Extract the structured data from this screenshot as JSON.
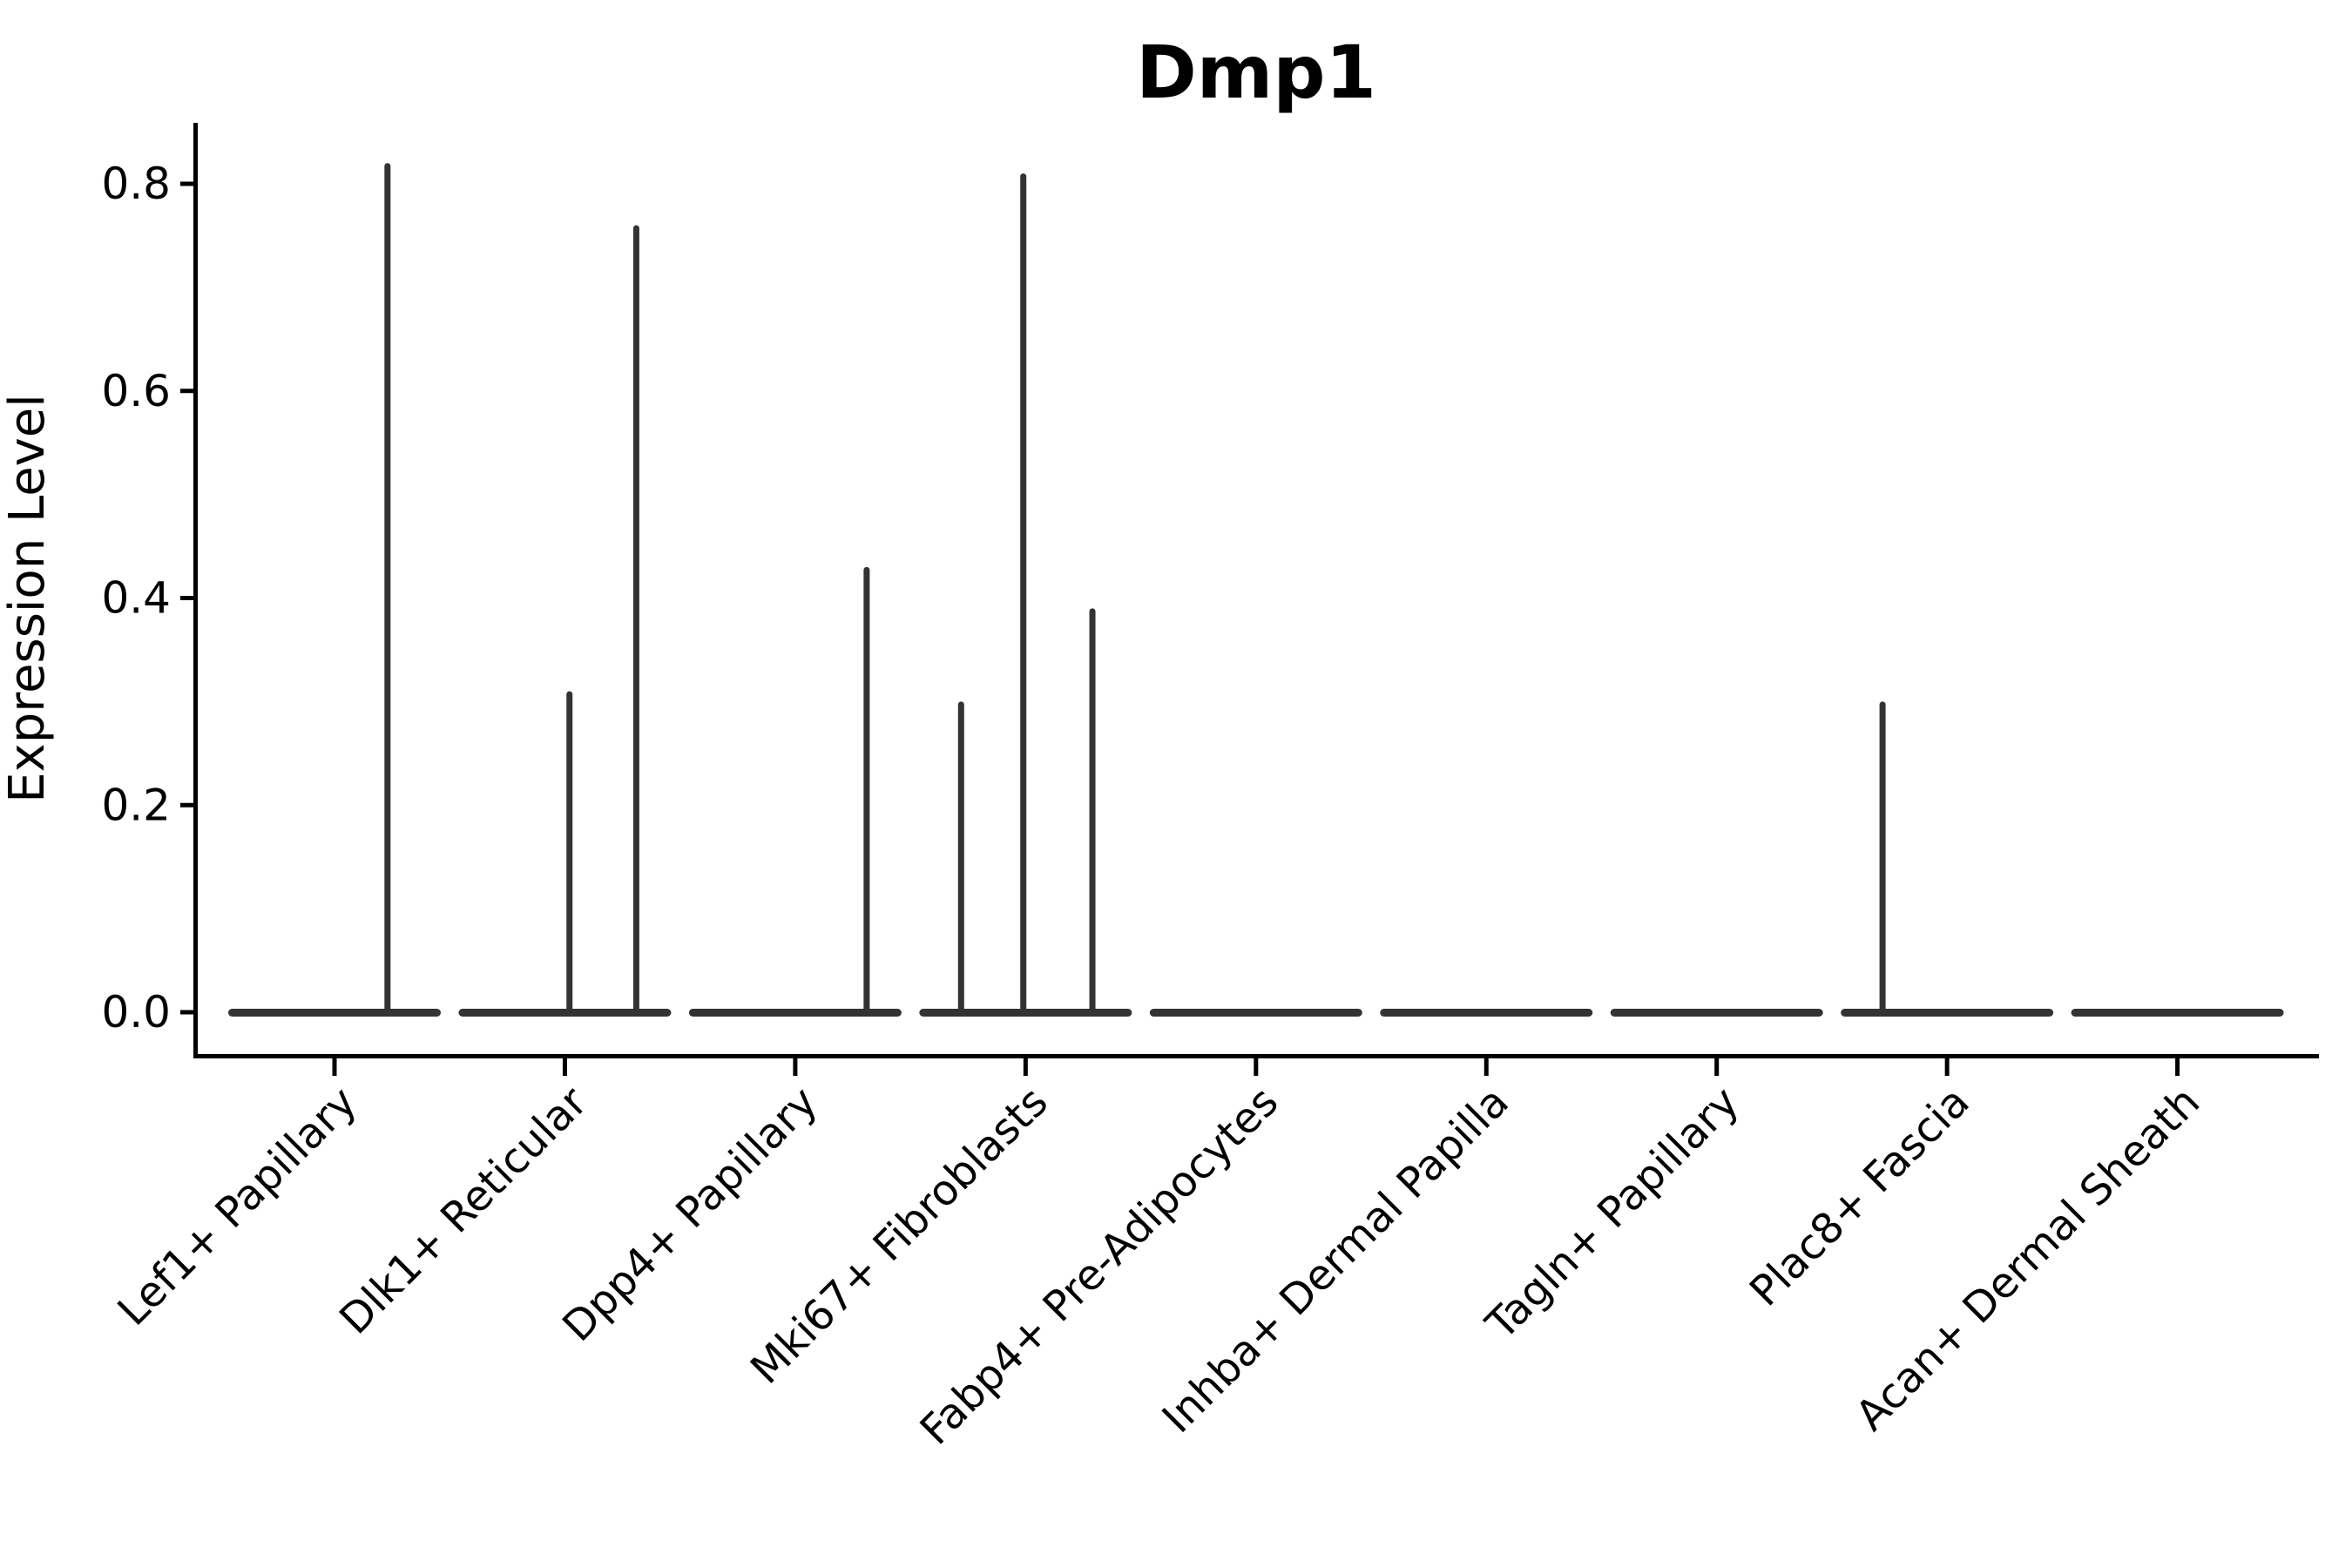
{
  "chart_data": {
    "type": "violin",
    "title": "Dmp1",
    "ylabel": "Expression Level",
    "xlabel": "",
    "yticks": [
      0.0,
      0.2,
      0.4,
      0.6,
      0.8
    ],
    "ylim": [
      -0.04,
      0.86
    ],
    "grid": false,
    "legend": null,
    "categories": [
      "Lef1+ Papillary",
      "Dlk1+ Reticular",
      "Dpp4+ Papillary",
      "Mki67+ Fibroblasts",
      "Fabp4+ Pre-Adipocytes",
      "Inhba+ Dermal Papilla",
      "Tagln+ Papillary",
      "Plac8+ Fascia",
      "Acan+ Dermal Sheath"
    ],
    "series": [
      {
        "category": "Lef1+ Papillary",
        "baseline": 0.0,
        "spikes": [
          {
            "offset": 0.23,
            "value": 0.82
          }
        ]
      },
      {
        "category": "Dlk1+ Reticular",
        "baseline": 0.0,
        "spikes": [
          {
            "offset": 0.02,
            "value": 0.31
          },
          {
            "offset": 0.31,
            "value": 0.76
          }
        ]
      },
      {
        "category": "Dpp4+ Papillary",
        "baseline": 0.0,
        "spikes": [
          {
            "offset": 0.31,
            "value": 0.43
          }
        ]
      },
      {
        "category": "Mki67+ Fibroblasts",
        "baseline": 0.0,
        "spikes": [
          {
            "offset": -0.28,
            "value": 0.3
          },
          {
            "offset": -0.01,
            "value": 0.81
          },
          {
            "offset": 0.29,
            "value": 0.39
          }
        ]
      },
      {
        "category": "Fabp4+ Pre-Adipocytes",
        "baseline": 0.0,
        "spikes": []
      },
      {
        "category": "Inhba+ Dermal Papilla",
        "baseline": 0.0,
        "spikes": []
      },
      {
        "category": "Tagln+ Papillary",
        "baseline": 0.0,
        "spikes": []
      },
      {
        "category": "Plac8+ Fascia",
        "baseline": 0.0,
        "spikes": [
          {
            "offset": -0.28,
            "value": 0.3
          }
        ]
      },
      {
        "category": "Acan+ Dermal Sheath",
        "baseline": 0.0,
        "spikes": []
      }
    ],
    "colors": {
      "violin": "#333333",
      "axis": "#000000",
      "text": "#000000",
      "background": "#ffffff"
    }
  }
}
